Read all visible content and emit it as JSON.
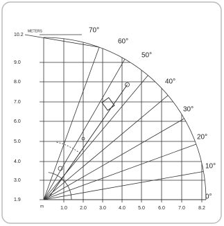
{
  "unit": "METERS",
  "origin_label": "m",
  "y_labels": [
    "10.2",
    "9.0",
    "8.0",
    "7.0",
    "6.0",
    "5.0",
    "4.0",
    "3.0",
    "1.9"
  ],
  "x_labels": [
    "1.0",
    "2.0",
    "3.0",
    "4.0",
    "5.0",
    "6.0",
    "7.0",
    "8.2"
  ],
  "angle_labels": [
    "70°",
    "60°",
    "50°",
    "40°",
    "30°",
    "20°",
    "10°",
    "0°"
  ]
}
